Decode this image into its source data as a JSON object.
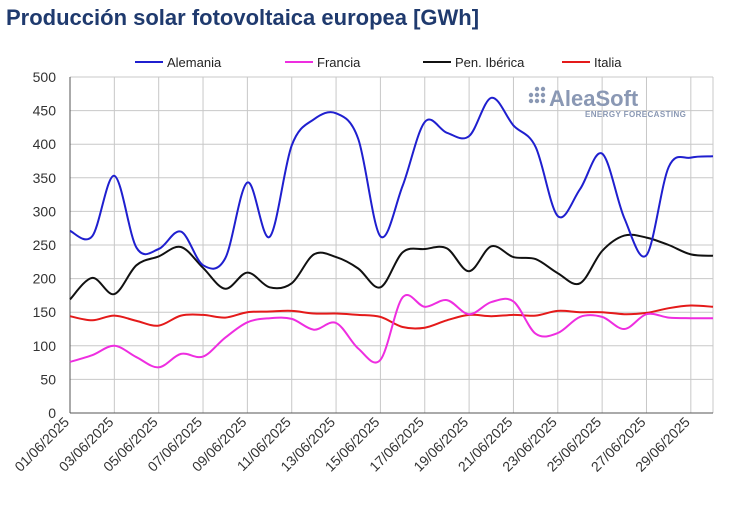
{
  "title": "Producción solar fotovoltaica europea [GWh]",
  "logo": {
    "name": "AleaSoft",
    "tagline": "ENERGY FORECASTING"
  },
  "chart_data": {
    "type": "line",
    "title": "Producción solar fotovoltaica europea [GWh]",
    "xlabel": "",
    "ylabel": "",
    "ylim": [
      0,
      500
    ],
    "yticks": [
      0,
      50,
      100,
      150,
      200,
      250,
      300,
      350,
      400,
      450,
      500
    ],
    "grid": true,
    "legend_position": "top",
    "x": [
      "01/06/2025",
      "02/06/2025",
      "03/06/2025",
      "04/06/2025",
      "05/06/2025",
      "06/06/2025",
      "07/06/2025",
      "08/06/2025",
      "09/06/2025",
      "10/06/2025",
      "11/06/2025",
      "12/06/2025",
      "13/06/2025",
      "14/06/2025",
      "15/06/2025",
      "16/06/2025",
      "17/06/2025",
      "18/06/2025",
      "19/06/2025",
      "20/06/2025",
      "21/06/2025",
      "22/06/2025",
      "23/06/2025",
      "24/06/2025",
      "25/06/2025",
      "26/06/2025",
      "27/06/2025",
      "28/06/2025",
      "29/06/2025",
      "30/06/2025"
    ],
    "xtick_labels": [
      "01/06/2025",
      "03/06/2025",
      "05/06/2025",
      "07/06/2025",
      "09/06/2025",
      "11/06/2025",
      "13/06/2025",
      "15/06/2025",
      "17/06/2025",
      "19/06/2025",
      "21/06/2025",
      "23/06/2025",
      "25/06/2025",
      "27/06/2025",
      "29/06/2025"
    ],
    "series": [
      {
        "name": "Alemania",
        "color": "#1f1fcf",
        "values": [
          271,
          263,
          353,
          246,
          244,
          270,
          220,
          230,
          343,
          262,
          398,
          437,
          446,
          408,
          263,
          338,
          433,
          417,
          412,
          469,
          428,
          396,
          293,
          333,
          386,
          290,
          235,
          366,
          380,
          382
        ]
      },
      {
        "name": "Francia",
        "color": "#ee2ee0",
        "values": [
          76,
          86,
          100,
          83,
          68,
          88,
          84,
          112,
          135,
          141,
          140,
          124,
          134,
          96,
          79,
          172,
          158,
          168,
          147,
          165,
          166,
          118,
          119,
          143,
          143,
          125,
          147,
          142,
          141,
          141
        ]
      },
      {
        "name": "Pen. Ibérica",
        "color": "#111111",
        "values": [
          169,
          201,
          177,
          220,
          233,
          247,
          216,
          185,
          209,
          187,
          193,
          236,
          232,
          215,
          187,
          239,
          244,
          245,
          211,
          248,
          232,
          229,
          208,
          193,
          241,
          264,
          261,
          250,
          236,
          234
        ]
      },
      {
        "name": "Italia",
        "color": "#e41a1a",
        "values": [
          144,
          138,
          145,
          137,
          130,
          145,
          146,
          142,
          150,
          151,
          152,
          148,
          148,
          146,
          143,
          128,
          127,
          138,
          146,
          144,
          146,
          145,
          152,
          150,
          150,
          147,
          149,
          156,
          160,
          158
        ]
      }
    ]
  }
}
